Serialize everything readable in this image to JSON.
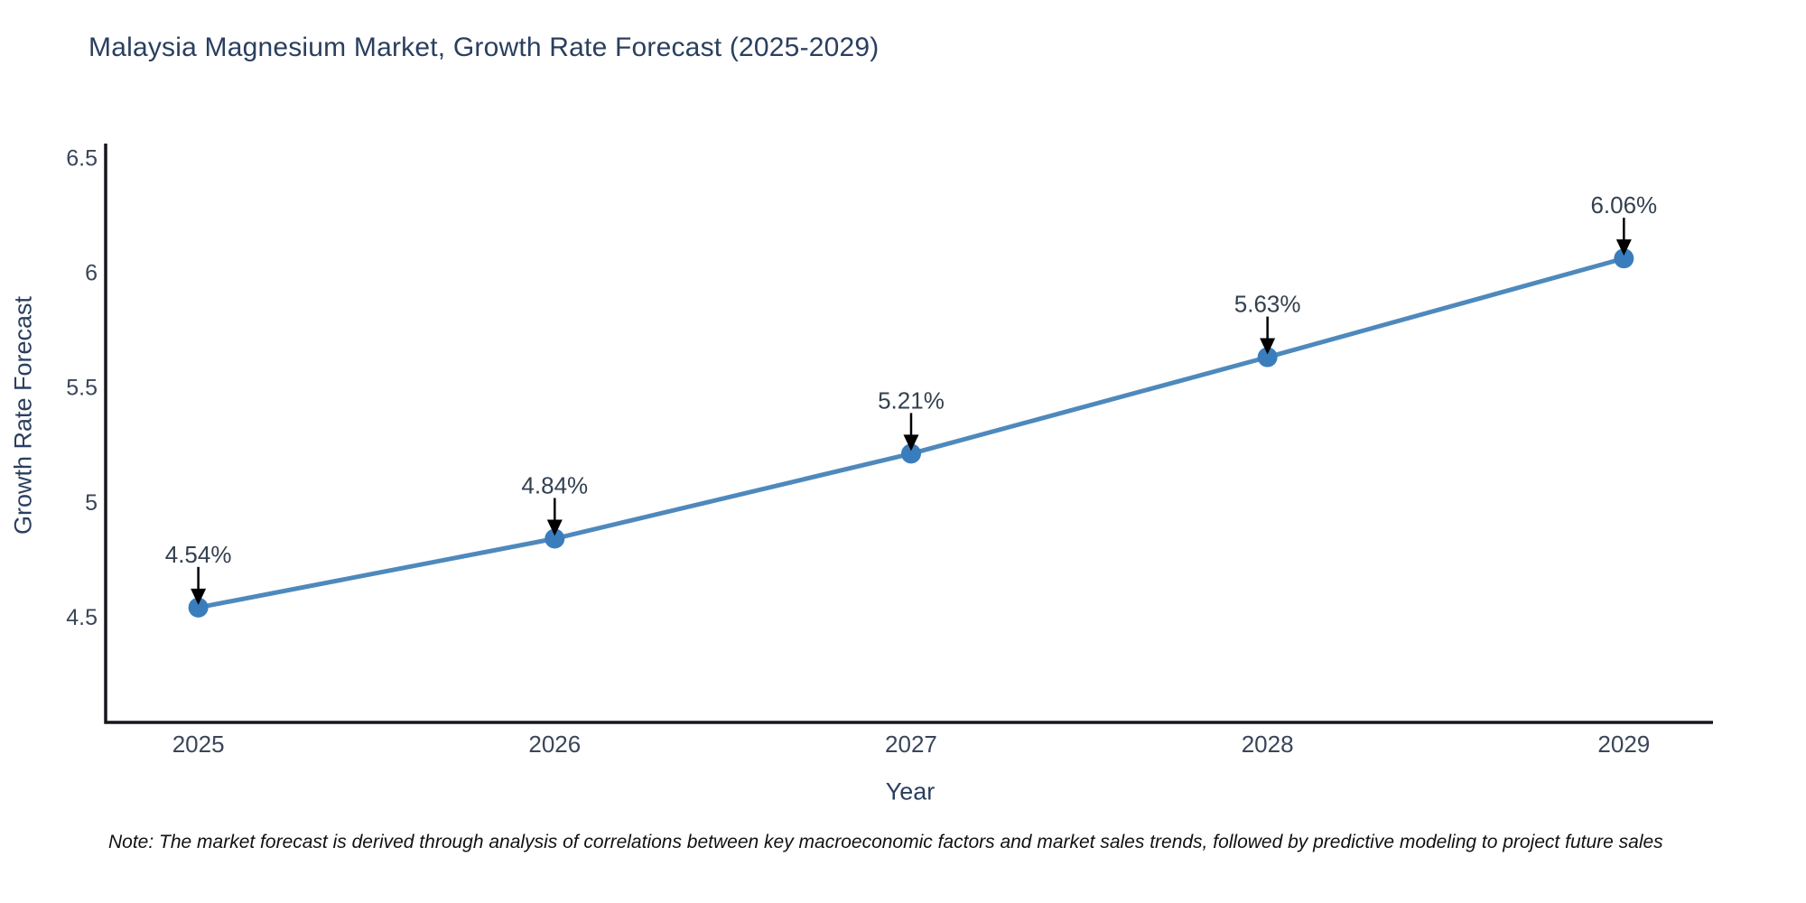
{
  "footnote": {
    "text": "Note: The market forecast is derived through analysis of correlations between key macroeconomic factors and market sales trends, followed by predictive modeling to project future sales"
  },
  "chart_data": {
    "type": "line",
    "title": "Malaysia Magnesium Market, Growth Rate Forecast (2025-2029)",
    "xlabel": "Year",
    "ylabel": "Growth Rate Forecast",
    "x": [
      2025,
      2026,
      2027,
      2028,
      2029
    ],
    "series": [
      {
        "name": "Growth Rate Forecast",
        "values": [
          4.54,
          4.84,
          5.21,
          5.63,
          6.06
        ]
      }
    ],
    "point_labels": [
      "4.54%",
      "4.84%",
      "5.21%",
      "5.63%",
      "6.06%"
    ],
    "xticks": [
      2025,
      2026,
      2027,
      2028,
      2029
    ],
    "yticks": [
      4.5,
      5,
      5.5,
      6,
      6.5
    ],
    "xlim": [
      2024.74,
      2029.25
    ],
    "ylim": [
      4.04,
      6.56
    ],
    "grid": false,
    "legend": "none",
    "annotations": "each data point labeled with percent value and a black down-arrow",
    "colors": {
      "line": "#4e89bc",
      "marker": "#3a7dbd",
      "arrow": "#000000",
      "axis": "#16161f",
      "title": "#2a3f5f",
      "tick": "#3a4559",
      "point_label": "#33404f",
      "note": "#111111"
    }
  }
}
